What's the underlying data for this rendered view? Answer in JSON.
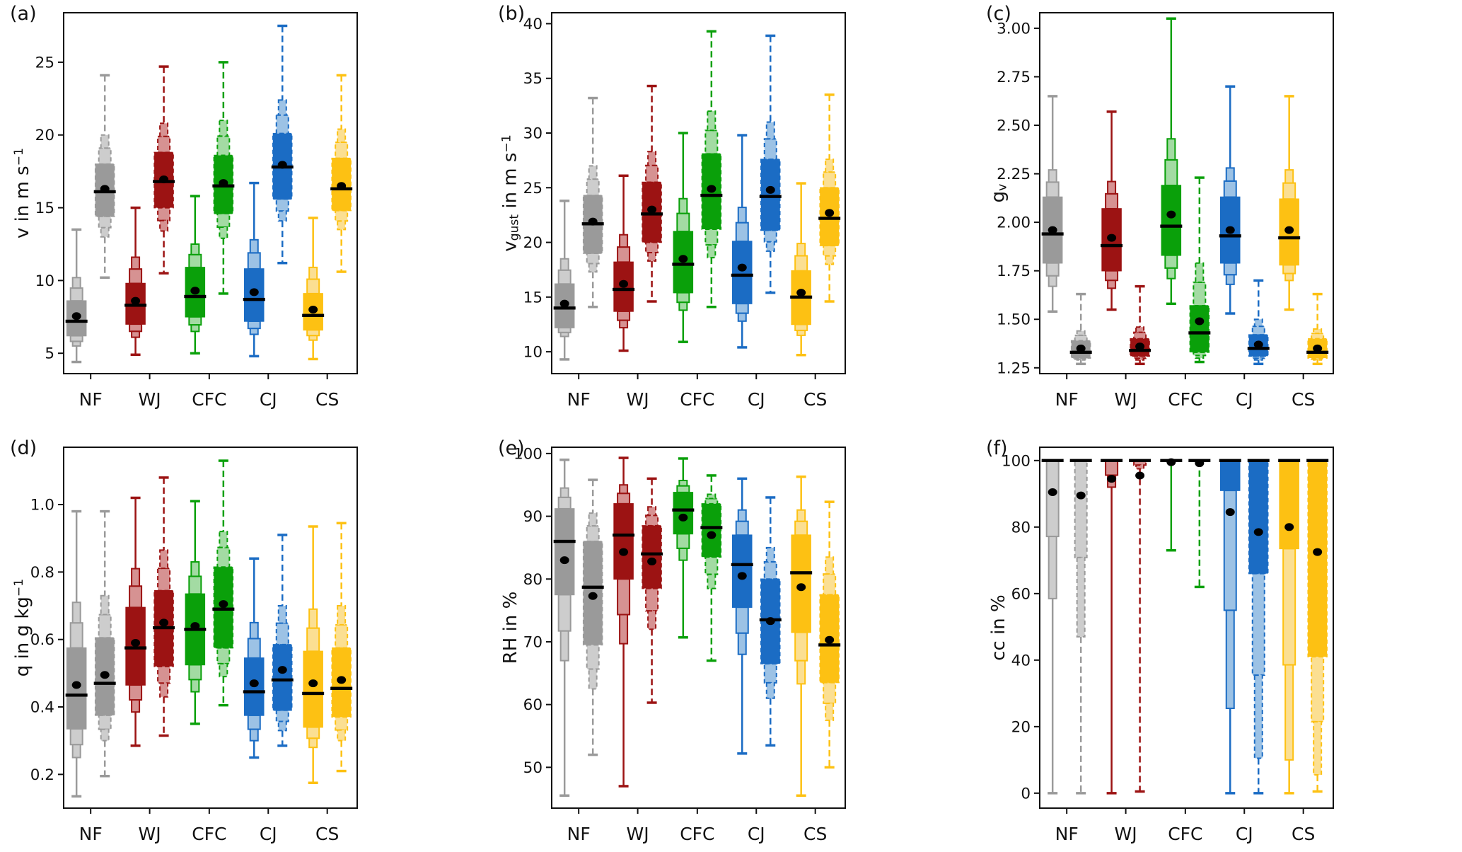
{
  "chart_data": {
    "type": "boxplot",
    "title": "",
    "layout": "2x3 grid of nested (letter-value style) box plots, each category shown as a solid-line and a dashed-line box plot pair",
    "legend": "none",
    "grid": "off",
    "categories": [
      "NF",
      "WJ",
      "CFC",
      "CJ",
      "CS"
    ],
    "series_styles": [
      "solid",
      "dashed"
    ],
    "stat_keys": [
      "whisker_low",
      "p10",
      "q1",
      "median",
      "mean",
      "q3",
      "p90",
      "whisker_high"
    ],
    "marker_colors": {
      "median": "#000000",
      "mean": "#000000"
    },
    "frame_color": "#111111",
    "category_colors": [
      {
        "category": "NF",
        "dark": "#9a9a9a",
        "light": "#cdcdcd"
      },
      {
        "category": "WJ",
        "dark": "#9c1313",
        "light": "#d69292"
      },
      {
        "category": "CFC",
        "dark": "#0aa00a",
        "light": "#a3dba3"
      },
      {
        "category": "CJ",
        "dark": "#1b6cc4",
        "light": "#9cc2e5"
      },
      {
        "category": "CS",
        "dark": "#fdc113",
        "light": "#fbdf92"
      }
    ],
    "panels": [
      {
        "id": "a",
        "label": "(a)",
        "ylabel": [
          {
            "text": "v in m s"
          },
          {
            "text": "−1",
            "sup": true
          }
        ],
        "ylim": [
          3.6,
          28.4
        ],
        "ytick_values": [
          5,
          10,
          15,
          20,
          25
        ],
        "ytick_labels": [
          "5",
          "10",
          "15",
          "20",
          "25"
        ],
        "solid": [
          [
            4.4,
            5.5,
            6.2,
            7.2,
            7.55,
            8.6,
            10.2,
            13.5
          ],
          [
            4.9,
            6.1,
            7.0,
            8.3,
            8.6,
            9.8,
            11.6,
            15.0
          ],
          [
            5.0,
            6.5,
            7.5,
            8.9,
            9.3,
            10.9,
            12.5,
            15.8
          ],
          [
            4.8,
            6.3,
            7.2,
            8.7,
            9.2,
            10.8,
            12.8,
            16.7
          ],
          [
            4.6,
            5.9,
            6.6,
            7.6,
            8.0,
            9.1,
            10.9,
            14.3
          ]
        ],
        "dashed": [
          [
            10.2,
            13.0,
            14.4,
            16.1,
            16.3,
            18.0,
            20.0,
            24.1
          ],
          [
            10.5,
            13.4,
            15.0,
            16.8,
            16.95,
            18.8,
            20.8,
            24.7
          ],
          [
            9.1,
            12.9,
            14.6,
            16.5,
            16.7,
            18.6,
            21.0,
            25.0
          ],
          [
            11.2,
            14.1,
            15.6,
            17.8,
            17.95,
            20.1,
            22.4,
            27.5
          ],
          [
            10.6,
            13.5,
            14.8,
            16.3,
            16.5,
            18.4,
            20.4,
            24.1
          ]
        ]
      },
      {
        "id": "b",
        "label": "(b)",
        "ylabel": [
          {
            "text": "v"
          },
          {
            "text": "gust",
            "sub": true
          },
          {
            "text": " in m s"
          },
          {
            "text": "−1",
            "sup": true
          }
        ],
        "ylim": [
          8.0,
          41.0
        ],
        "ytick_values": [
          10,
          15,
          20,
          25,
          30,
          35,
          40
        ],
        "ytick_labels": [
          "10",
          "15",
          "20",
          "25",
          "30",
          "35",
          "40"
        ],
        "solid": [
          [
            9.3,
            11.4,
            12.2,
            14.0,
            14.4,
            16.2,
            18.5,
            23.8
          ],
          [
            10.1,
            12.2,
            13.7,
            15.7,
            16.2,
            18.2,
            20.7,
            26.1
          ],
          [
            10.9,
            13.8,
            15.4,
            18.0,
            18.5,
            21.0,
            24.0,
            30.0
          ],
          [
            10.4,
            12.8,
            14.4,
            17.0,
            17.7,
            20.1,
            23.2,
            29.8
          ],
          [
            9.7,
            11.5,
            12.5,
            15.0,
            15.4,
            17.4,
            19.9,
            25.4
          ]
        ],
        "dashed": [
          [
            14.1,
            17.3,
            19.0,
            21.7,
            21.9,
            24.3,
            27.0,
            33.2
          ],
          [
            14.6,
            18.3,
            20.0,
            22.6,
            23.0,
            25.5,
            28.3,
            34.3
          ],
          [
            14.1,
            18.6,
            21.2,
            24.3,
            24.9,
            28.1,
            32.0,
            39.3
          ],
          [
            15.4,
            19.2,
            21.1,
            24.2,
            24.8,
            27.6,
            31.0,
            38.9
          ],
          [
            14.6,
            18.0,
            19.7,
            22.2,
            22.7,
            25.0,
            27.6,
            33.5
          ]
        ]
      },
      {
        "id": "c",
        "label": "(c)",
        "ylabel": [
          {
            "text": "g"
          },
          {
            "text": "v",
            "sub": true
          }
        ],
        "ylim": [
          1.22,
          3.08
        ],
        "ytick_values": [
          1.25,
          1.5,
          1.75,
          2.0,
          2.25,
          2.5,
          2.75,
          3.0
        ],
        "ytick_labels": [
          "1.25",
          "1.50",
          "1.75",
          "2.00",
          "2.25",
          "2.50",
          "2.75",
          "3.00"
        ],
        "solid": [
          [
            1.54,
            1.67,
            1.79,
            1.94,
            1.96,
            2.13,
            2.27,
            2.65
          ],
          [
            1.55,
            1.66,
            1.75,
            1.88,
            1.92,
            2.07,
            2.21,
            2.57
          ],
          [
            1.58,
            1.71,
            1.83,
            1.98,
            2.04,
            2.19,
            2.43,
            3.05
          ],
          [
            1.53,
            1.68,
            1.79,
            1.93,
            1.96,
            2.13,
            2.28,
            2.7
          ],
          [
            1.55,
            1.7,
            1.78,
            1.92,
            1.96,
            2.12,
            2.27,
            2.65
          ]
        ],
        "dashed": [
          [
            1.27,
            1.29,
            1.3,
            1.33,
            1.35,
            1.39,
            1.44,
            1.63
          ],
          [
            1.27,
            1.29,
            1.31,
            1.34,
            1.36,
            1.4,
            1.46,
            1.67
          ],
          [
            1.28,
            1.3,
            1.33,
            1.43,
            1.49,
            1.57,
            1.79,
            2.23
          ],
          [
            1.27,
            1.29,
            1.31,
            1.35,
            1.37,
            1.42,
            1.5,
            1.7
          ],
          [
            1.27,
            1.29,
            1.3,
            1.33,
            1.35,
            1.4,
            1.45,
            1.63
          ]
        ]
      },
      {
        "id": "d",
        "label": "(d)",
        "ylabel": [
          {
            "text": "q in g kg"
          },
          {
            "text": "−1",
            "sup": true
          }
        ],
        "ylim": [
          0.1,
          1.17
        ],
        "ytick_values": [
          0.2,
          0.4,
          0.6,
          0.8,
          1.0
        ],
        "ytick_labels": [
          "0.2",
          "0.4",
          "0.6",
          "0.8",
          "1.0"
        ],
        "solid": [
          [
            0.135,
            0.25,
            0.335,
            0.435,
            0.465,
            0.575,
            0.71,
            0.98
          ],
          [
            0.285,
            0.385,
            0.465,
            0.575,
            0.59,
            0.695,
            0.81,
            1.02
          ],
          [
            0.35,
            0.445,
            0.525,
            0.63,
            0.64,
            0.735,
            0.83,
            1.01
          ],
          [
            0.25,
            0.3,
            0.375,
            0.445,
            0.47,
            0.545,
            0.65,
            0.84
          ],
          [
            0.175,
            0.28,
            0.34,
            0.44,
            0.47,
            0.565,
            0.69,
            0.935
          ]
        ],
        "dashed": [
          [
            0.195,
            0.3,
            0.375,
            0.47,
            0.495,
            0.605,
            0.73,
            0.98
          ],
          [
            0.315,
            0.43,
            0.52,
            0.635,
            0.65,
            0.745,
            0.865,
            1.08
          ],
          [
            0.405,
            0.49,
            0.575,
            0.69,
            0.705,
            0.815,
            0.92,
            1.13
          ],
          [
            0.285,
            0.33,
            0.39,
            0.48,
            0.51,
            0.585,
            0.7,
            0.91
          ],
          [
            0.21,
            0.3,
            0.37,
            0.455,
            0.48,
            0.575,
            0.7,
            0.945
          ]
        ]
      },
      {
        "id": "e",
        "label": "(e)",
        "ylabel": [
          {
            "text": "RH in %"
          }
        ],
        "ylim": [
          43.5,
          101.0
        ],
        "ytick_values": [
          50,
          60,
          70,
          80,
          90,
          100
        ],
        "ytick_labels": [
          "50",
          "60",
          "70",
          "80",
          "90",
          "100"
        ],
        "solid": [
          [
            45.5,
            67.0,
            77.5,
            86.0,
            83.0,
            91.2,
            94.5,
            99.0
          ],
          [
            47.0,
            69.7,
            80.0,
            87.0,
            84.3,
            92.0,
            95.0,
            99.3
          ],
          [
            70.7,
            83.0,
            87.2,
            91.0,
            89.8,
            93.8,
            95.7,
            99.2
          ],
          [
            52.2,
            68.0,
            75.5,
            82.3,
            80.5,
            87.0,
            91.0,
            96.0
          ],
          [
            45.5,
            63.3,
            71.5,
            81.0,
            78.7,
            87.0,
            91.0,
            96.3
          ]
        ],
        "dashed": [
          [
            52.0,
            62.5,
            69.5,
            78.7,
            77.3,
            86.0,
            90.5,
            95.8
          ],
          [
            60.3,
            72.0,
            78.5,
            84.0,
            82.8,
            88.5,
            91.5,
            96.0
          ],
          [
            67.0,
            78.5,
            83.5,
            88.2,
            87.0,
            92.0,
            93.5,
            96.5
          ],
          [
            53.5,
            61.0,
            66.5,
            73.5,
            73.3,
            80.0,
            85.0,
            93.0
          ],
          [
            50.0,
            57.5,
            63.5,
            69.5,
            70.3,
            77.5,
            83.5,
            92.3
          ]
        ]
      },
      {
        "id": "f",
        "label": "(f)",
        "ylabel": [
          {
            "text": "cc in %"
          }
        ],
        "ylim": [
          -4.5,
          104.0
        ],
        "ytick_values": [
          0,
          20,
          40,
          60,
          80,
          100
        ],
        "ytick_labels": [
          "0",
          "20",
          "40",
          "60",
          "80",
          "100"
        ],
        "solid": [
          [
            0,
            58.5,
            100,
            100,
            90.5,
            100,
            100,
            100
          ],
          [
            0,
            92,
            100,
            100,
            94.5,
            100,
            100,
            100
          ],
          [
            73,
            100,
            100,
            100,
            99.5,
            100,
            100,
            100
          ],
          [
            0,
            25.5,
            91,
            100,
            84.5,
            100,
            100,
            100
          ],
          [
            0,
            10,
            73.5,
            100,
            80,
            100,
            100,
            100
          ]
        ],
        "dashed": [
          [
            0,
            47,
            100,
            100,
            89.5,
            100,
            100,
            100
          ],
          [
            0.5,
            97.5,
            100,
            100,
            95.5,
            100,
            100,
            100
          ],
          [
            62,
            100,
            100,
            100,
            99.2,
            100,
            100,
            100
          ],
          [
            0,
            10.5,
            66,
            100,
            78.5,
            100,
            100,
            100
          ],
          [
            0.5,
            5.5,
            41,
            100,
            72.5,
            100,
            100,
            100
          ]
        ]
      }
    ]
  }
}
